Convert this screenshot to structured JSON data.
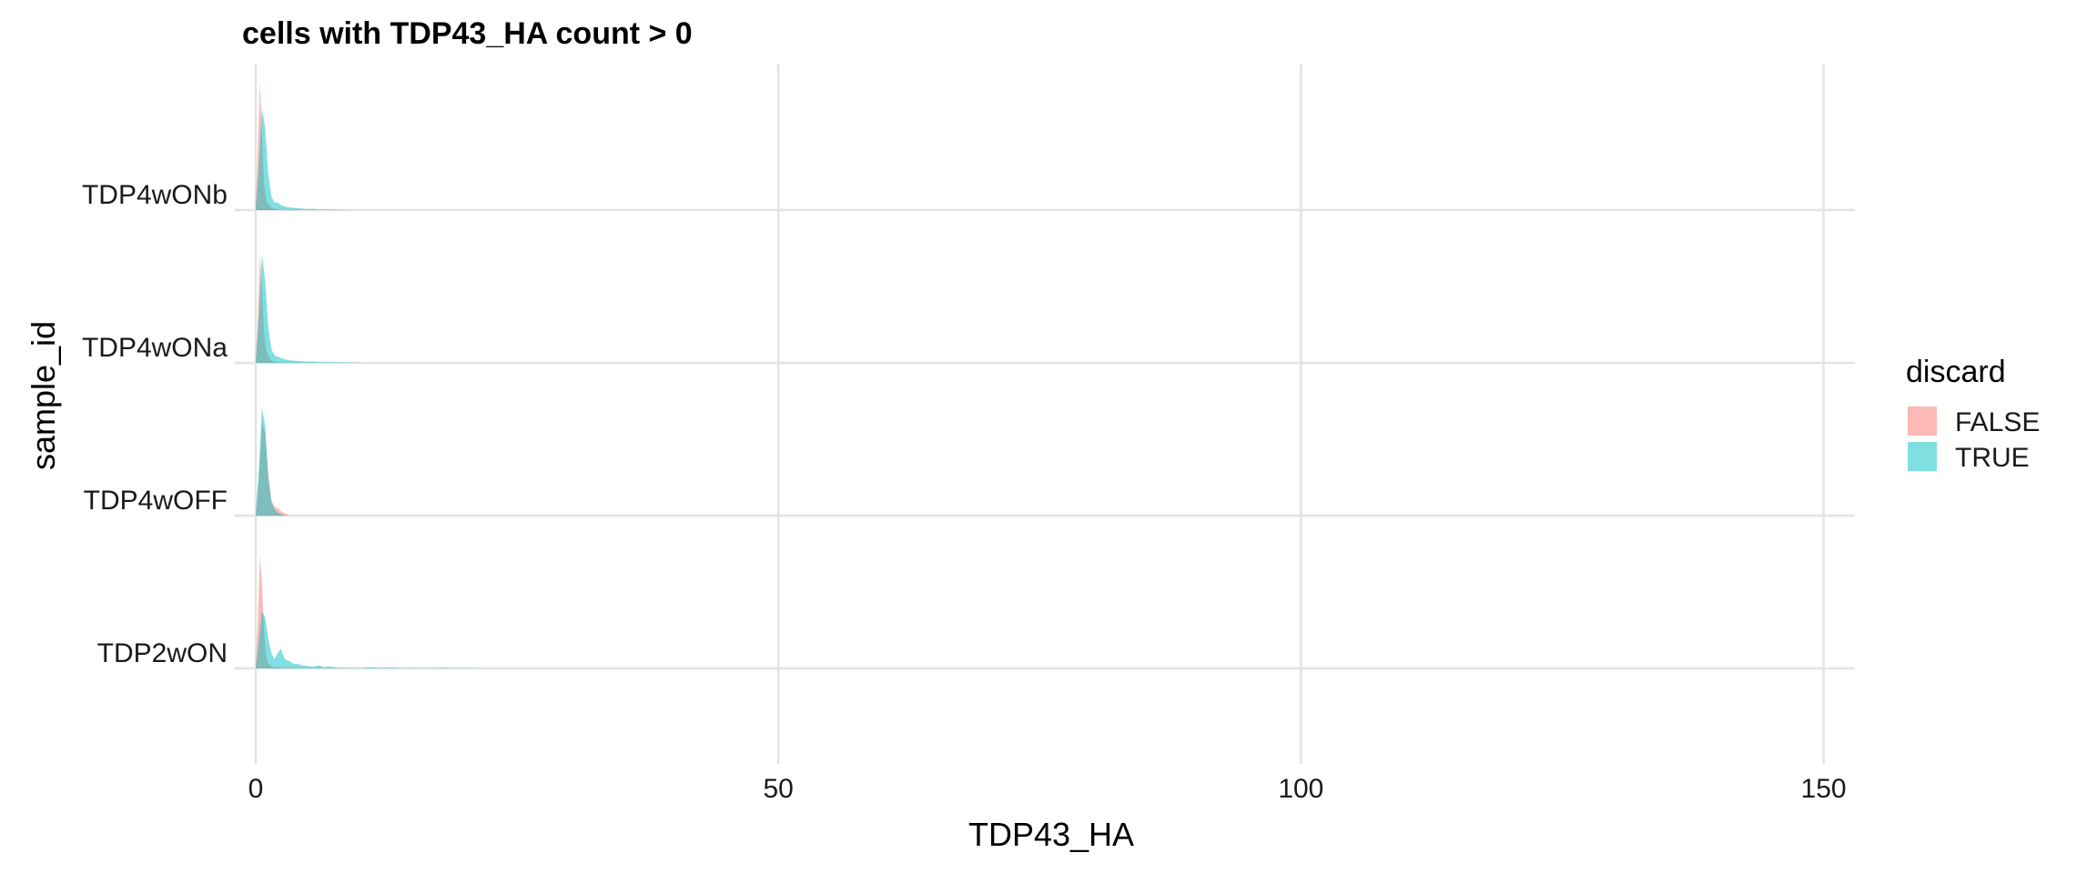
{
  "chart_data": {
    "type": "area",
    "subtype": "ridgeline-density",
    "title": "cells with TDP43_HA count > 0",
    "xlabel": "TDP43_HA",
    "ylabel": "sample_id",
    "xlim": [
      -2,
      153
    ],
    "x_ticks": [
      0,
      50,
      100,
      150
    ],
    "x_tick_labels": [
      "0",
      "50",
      "100",
      "150"
    ],
    "categories": [
      "TDP2wON",
      "TDP4wOFF",
      "TDP4wONa",
      "TDP4wONb"
    ],
    "grid": true,
    "legend": {
      "title": "discard",
      "position": "right",
      "entries": [
        "FALSE",
        "TRUE"
      ]
    },
    "colors": {
      "FALSE": "#F8766D",
      "TRUE": "#00BFC4"
    },
    "ridges": [
      {
        "category": "TDP2wON",
        "series": [
          {
            "name": "FALSE",
            "x": [
              0,
              0.2,
              0.4,
              0.6,
              0.8,
              1.0,
              1.2,
              1.6,
              2.0,
              3.0
            ],
            "density": [
              0,
              0.3,
              0.75,
              0.55,
              0.25,
              0.08,
              0.03,
              0.01,
              0.005,
              0
            ]
          },
          {
            "name": "TRUE",
            "x": [
              0,
              0.3,
              0.6,
              0.9,
              1.2,
              1.5,
              1.8,
              2.1,
              2.4,
              2.8,
              3.2,
              3.6,
              4.0,
              4.5,
              5,
              5.5,
              6,
              6.5,
              7,
              8,
              9,
              10,
              11,
              12,
              13,
              14,
              15,
              16,
              17,
              18,
              19,
              20,
              21,
              22
            ],
            "density": [
              0,
              0.18,
              0.38,
              0.34,
              0.2,
              0.1,
              0.06,
              0.1,
              0.13,
              0.06,
              0.05,
              0.03,
              0.03,
              0.02,
              0.015,
              0.01,
              0.02,
              0.008,
              0.012,
              0.004,
              0.003,
              0.002,
              0.008,
              0.003,
              0.006,
              0.002,
              0.003,
              0.002,
              0.002,
              0.004,
              0.001,
              0.003,
              0.001,
              0
            ]
          }
        ]
      },
      {
        "category": "TDP4wOFF",
        "series": [
          {
            "name": "FALSE",
            "x": [
              0,
              0.3,
              0.6,
              0.9,
              1.2,
              1.5,
              1.8,
              2.1,
              2.4,
              2.8,
              3.2
            ],
            "density": [
              0,
              0.25,
              0.62,
              0.55,
              0.28,
              0.1,
              0.06,
              0.05,
              0.03,
              0.015,
              0
            ]
          },
          {
            "name": "TRUE",
            "x": [
              0,
              0.3,
              0.6,
              0.9,
              1.2,
              1.5,
              1.8,
              2.1,
              2.4,
              2.8
            ],
            "density": [
              0,
              0.3,
              0.72,
              0.6,
              0.26,
              0.09,
              0.04,
              0.02,
              0.01,
              0
            ]
          }
        ]
      },
      {
        "category": "TDP4wONa",
        "series": [
          {
            "name": "FALSE",
            "x": [
              0,
              0.2,
              0.4,
              0.6,
              0.8,
              1.0,
              1.4,
              2.0
            ],
            "density": [
              0,
              0.3,
              0.72,
              0.5,
              0.2,
              0.08,
              0.02,
              0
            ]
          },
          {
            "name": "TRUE",
            "x": [
              0,
              0.3,
              0.6,
              0.9,
              1.2,
              1.5,
              1.8,
              2.1,
              2.5,
              3.0,
              3.5,
              4,
              4.5,
              5,
              5.5,
              6,
              7,
              8,
              9,
              10
            ],
            "density": [
              0,
              0.3,
              0.72,
              0.55,
              0.24,
              0.09,
              0.05,
              0.04,
              0.03,
              0.02,
              0.015,
              0.012,
              0.01,
              0.006,
              0.008,
              0.005,
              0.004,
              0.003,
              0.002,
              0
            ]
          }
        ]
      },
      {
        "category": "TDP4wONb",
        "series": [
          {
            "name": "FALSE",
            "x": [
              0,
              0.2,
              0.4,
              0.6,
              0.8,
              1.0,
              1.4,
              2.0
            ],
            "density": [
              0,
              0.4,
              0.85,
              0.5,
              0.18,
              0.06,
              0.02,
              0
            ]
          },
          {
            "name": "TRUE",
            "x": [
              0,
              0.3,
              0.6,
              0.9,
              1.2,
              1.5,
              1.8,
              2.1,
              2.5,
              3.0,
              3.5,
              4,
              4.5,
              5,
              5.5,
              6,
              7,
              8,
              9
            ],
            "density": [
              0,
              0.3,
              0.68,
              0.55,
              0.24,
              0.09,
              0.05,
              0.05,
              0.03,
              0.02,
              0.015,
              0.012,
              0.01,
              0.006,
              0.008,
              0.005,
              0.004,
              0.003,
              0
            ]
          }
        ]
      }
    ]
  }
}
